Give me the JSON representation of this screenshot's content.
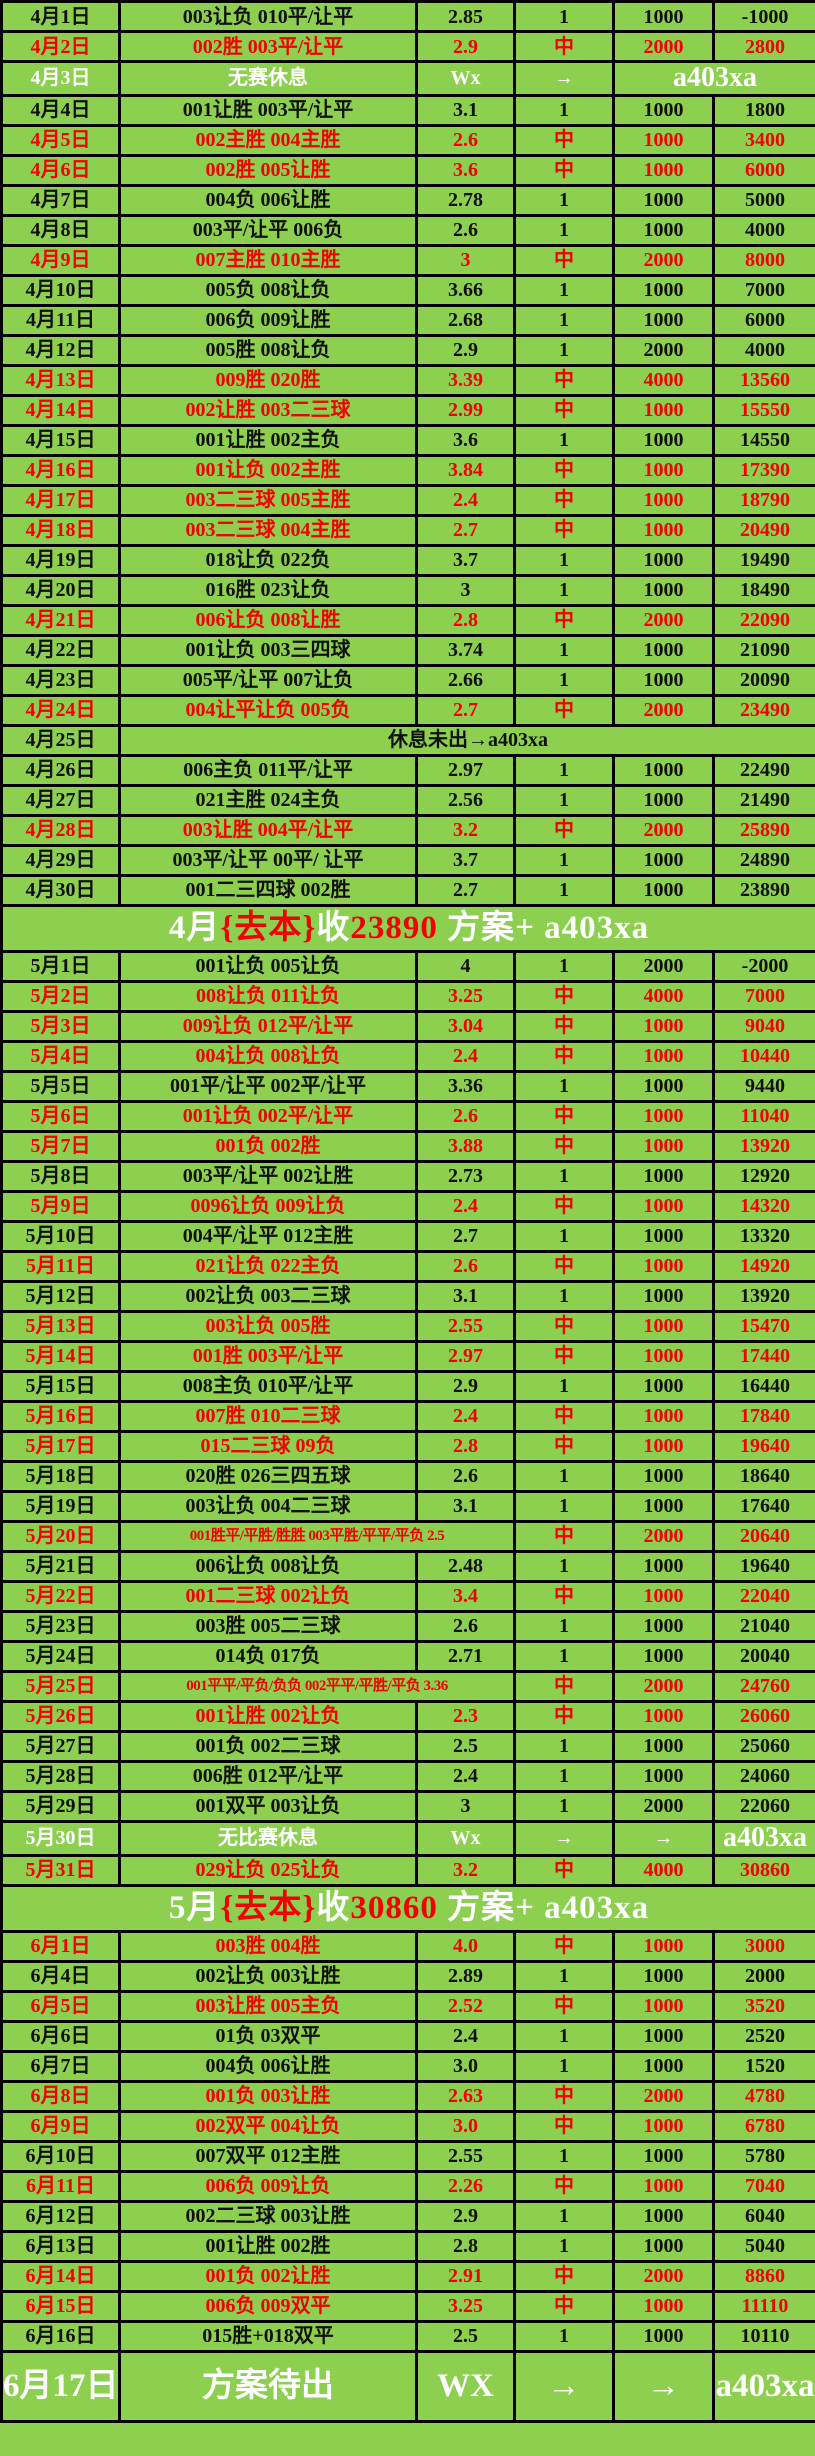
{
  "table": {
    "name": "betting-record-table",
    "columns": [
      "date",
      "picks",
      "odds",
      "result",
      "stake",
      "total"
    ],
    "colors": {
      "background_green": "#8dd04f",
      "grid_black": "#000000",
      "win_red": "#f40000",
      "lose_black": "#101010",
      "rest_white": "#ffffff"
    },
    "rows": [
      {
        "color": "black",
        "cells": [
          "4月1日",
          "003让负 010平/让平",
          "2.85",
          "1",
          "1000",
          "-1000"
        ]
      },
      {
        "color": "red",
        "cells": [
          "4月2日",
          "002胜 003平/让平",
          "2.9",
          "中",
          "2000",
          "2800"
        ]
      },
      {
        "color": "white",
        "cells": [
          "4月3日",
          "无赛休息",
          "Wx",
          "→",
          {
            "t": "a403xa",
            "span": 2,
            "cls": "big"
          }
        ]
      },
      {
        "color": "black",
        "cells": [
          "4月4日",
          "001让胜 003平/让平",
          "3.1",
          "1",
          "1000",
          "1800"
        ]
      },
      {
        "color": "red",
        "cells": [
          "4月5日",
          "002主胜 004主胜",
          "2.6",
          "中",
          "1000",
          "3400"
        ]
      },
      {
        "color": "red",
        "cells": [
          "4月6日",
          "002胜 005让胜",
          "3.6",
          "中",
          "1000",
          "6000"
        ]
      },
      {
        "color": "black",
        "cells": [
          "4月7日",
          "004负 006让胜",
          "2.78",
          "1",
          "1000",
          "5000"
        ]
      },
      {
        "color": "black",
        "cells": [
          "4月8日",
          "003平/让平 006负",
          "2.6",
          "1",
          "1000",
          "4000"
        ]
      },
      {
        "color": "red",
        "cells": [
          "4月9日",
          "007主胜 010主胜",
          "3",
          "中",
          "2000",
          "8000"
        ]
      },
      {
        "color": "black",
        "cells": [
          "4月10日",
          "005负 008让负",
          "3.66",
          "1",
          "1000",
          "7000"
        ]
      },
      {
        "color": "black",
        "cells": [
          "4月11日",
          "006负 009让胜",
          "2.68",
          "1",
          "1000",
          "6000"
        ]
      },
      {
        "color": "black",
        "cells": [
          "4月12日",
          "005胜 008让负",
          "2.9",
          "1",
          "2000",
          "4000"
        ]
      },
      {
        "color": "red",
        "cells": [
          "4月13日",
          "009胜 020胜",
          "3.39",
          "中",
          "4000",
          "13560"
        ]
      },
      {
        "color": "red",
        "cells": [
          "4月14日",
          "002让胜 003二三球",
          "2.99",
          "中",
          "1000",
          "15550"
        ]
      },
      {
        "color": "black",
        "cells": [
          "4月15日",
          "001让胜 002主负",
          "3.6",
          "1",
          "1000",
          "14550"
        ]
      },
      {
        "color": "red",
        "cells": [
          "4月16日",
          "001让负 002主胜",
          "3.84",
          "中",
          "1000",
          "17390"
        ]
      },
      {
        "color": "red",
        "cells": [
          "4月17日",
          "003二三球 005主胜",
          "2.4",
          "中",
          "1000",
          "18790"
        ]
      },
      {
        "color": "red",
        "cells": [
          "4月18日",
          "003二三球 004主胜",
          "2.7",
          "中",
          "1000",
          "20490"
        ]
      },
      {
        "color": "black",
        "cells": [
          "4月19日",
          "018让负 022负",
          "3.7",
          "1",
          "1000",
          "19490"
        ]
      },
      {
        "color": "black",
        "cells": [
          "4月20日",
          "016胜 023让负",
          "3",
          "1",
          "1000",
          "18490"
        ]
      },
      {
        "color": "red",
        "cells": [
          "4月21日",
          "006让负 008让胜",
          "2.8",
          "中",
          "2000",
          "22090"
        ]
      },
      {
        "color": "black",
        "cells": [
          "4月22日",
          "001让负 003三四球",
          "3.74",
          "1",
          "1000",
          "21090"
        ]
      },
      {
        "color": "black",
        "cells": [
          "4月23日",
          "005平/让平 007让负",
          "2.66",
          "1",
          "1000",
          "20090"
        ]
      },
      {
        "color": "red",
        "cells": [
          "4月24日",
          "004让平让负 005负",
          "2.7",
          "中",
          "2000",
          "23490"
        ]
      },
      {
        "color": "black",
        "cells": [
          "4月25日",
          {
            "t": "休息未出→a403xa",
            "span": 5
          }
        ]
      },
      {
        "color": "black",
        "cells": [
          "4月26日",
          "006主负 011平/让平",
          "2.97",
          "1",
          "1000",
          "22490"
        ]
      },
      {
        "color": "black",
        "cells": [
          "4月27日",
          "021主胜 024主负",
          "2.56",
          "1",
          "1000",
          "21490"
        ]
      },
      {
        "color": "red",
        "cells": [
          "4月28日",
          "003让胜 004平/让平",
          "3.2",
          "中",
          "2000",
          "25890"
        ]
      },
      {
        "color": "black",
        "cells": [
          "4月29日",
          "003平/让平 00平/ 让平",
          "3.7",
          "1",
          "1000",
          "24890"
        ]
      },
      {
        "color": "black",
        "cells": [
          "4月30日",
          "001二三四球 002胜",
          "2.7",
          "1",
          "1000",
          "23890"
        ]
      },
      {
        "h": "summary",
        "segs": [
          {
            "t": "4月",
            "c": "w"
          },
          {
            "t": "{去本}",
            "c": "r"
          },
          {
            "t": "收",
            "c": "w"
          },
          {
            "t": "23890",
            "c": "r"
          },
          {
            "t": " 方案+ a403xa",
            "c": "w"
          }
        ]
      },
      {
        "color": "black",
        "cells": [
          "5月1日",
          "001让负 005让负",
          "4",
          "1",
          "2000",
          "-2000"
        ]
      },
      {
        "color": "red",
        "cells": [
          "5月2日",
          "008让负 011让负",
          "3.25",
          "中",
          "4000",
          "7000"
        ]
      },
      {
        "color": "red",
        "cells": [
          "5月3日",
          "009让负 012平/让平",
          "3.04",
          "中",
          "1000",
          "9040"
        ]
      },
      {
        "color": "red",
        "cells": [
          "5月4日",
          "004让负 008让负",
          "2.4",
          "中",
          "1000",
          "10440"
        ]
      },
      {
        "color": "black",
        "cells": [
          "5月5日",
          "001平/让平 002平/让平",
          "3.36",
          "1",
          "1000",
          "9440"
        ]
      },
      {
        "color": "red",
        "cells": [
          "5月6日",
          "001让负 002平/让平",
          "2.6",
          "中",
          "1000",
          "11040"
        ]
      },
      {
        "color": "red",
        "cells": [
          "5月7日",
          "001负 002胜",
          "3.88",
          "中",
          "1000",
          "13920"
        ]
      },
      {
        "color": "black",
        "cells": [
          "5月8日",
          "003平/让平 002让胜",
          "2.73",
          "1",
          "1000",
          "12920"
        ]
      },
      {
        "color": "red",
        "cells": [
          "5月9日",
          "0096让负 009让负",
          "2.4",
          "中",
          "1000",
          "14320"
        ]
      },
      {
        "color": "black",
        "cells": [
          "5月10日",
          "004平/让平 012主胜",
          "2.7",
          "1",
          "1000",
          "13320"
        ]
      },
      {
        "color": "red",
        "cells": [
          "5月11日",
          "021让负 022主负",
          "2.6",
          "中",
          "1000",
          "14920"
        ]
      },
      {
        "color": "black",
        "cells": [
          "5月12日",
          "002让负 003二三球",
          "3.1",
          "1",
          "1000",
          "13920"
        ]
      },
      {
        "color": "red",
        "cells": [
          "5月13日",
          "003让负 005胜",
          "2.55",
          "中",
          "1000",
          "15470"
        ]
      },
      {
        "color": "red",
        "cells": [
          "5月14日",
          "001胜 003平/让平",
          "2.97",
          "中",
          "1000",
          "17440"
        ]
      },
      {
        "color": "black",
        "cells": [
          "5月15日",
          "008主负 010平/让平",
          "2.9",
          "1",
          "1000",
          "16440"
        ]
      },
      {
        "color": "red",
        "cells": [
          "5月16日",
          "007胜  010二三球",
          "2.4",
          "中",
          "1000",
          "17840"
        ]
      },
      {
        "color": "red",
        "cells": [
          "5月17日",
          "015二三球 09负",
          "2.8",
          "中",
          "1000",
          "19640"
        ]
      },
      {
        "color": "black",
        "cells": [
          "5月18日",
          "020胜 026三四五球",
          "2.6",
          "1",
          "1000",
          "18640"
        ]
      },
      {
        "color": "black",
        "cells": [
          "5月19日",
          "003让负 004二三球",
          "3.1",
          "1",
          "1000",
          "17640"
        ]
      },
      {
        "color": "red",
        "cells": [
          "5月20日",
          {
            "t": "001胜平/平胜/胜胜 003平胜/平平/平负 2.5",
            "span": 2,
            "cls": "small"
          },
          "中",
          "2000",
          "20640"
        ]
      },
      {
        "color": "black",
        "cells": [
          "5月21日",
          "006让负 008让负",
          "2.48",
          "1",
          "1000",
          "19640"
        ]
      },
      {
        "color": "red",
        "cells": [
          "5月22日",
          "001二三球 002让负",
          "3.4",
          "中",
          "1000",
          "22040"
        ]
      },
      {
        "color": "black",
        "cells": [
          "5月23日",
          "003胜 005二三球",
          "2.6",
          "1",
          "1000",
          "21040"
        ]
      },
      {
        "color": "black",
        "cells": [
          "5月24日",
          "014负 017负",
          "2.71",
          "1",
          "1000",
          "20040"
        ]
      },
      {
        "color": "red",
        "cells": [
          "5月25日",
          {
            "t": "001平平/平负/负负 002平平/平胜/平负 3.36",
            "span": 2,
            "cls": "small"
          },
          "中",
          "2000",
          "24760"
        ]
      },
      {
        "color": "red",
        "cells": [
          "5月26日",
          "001让胜 002让负",
          "2.3",
          "中",
          "1000",
          "26060"
        ]
      },
      {
        "color": "black",
        "cells": [
          "5月27日",
          "001负 002二三球",
          "2.5",
          "1",
          "1000",
          "25060"
        ]
      },
      {
        "color": "black",
        "cells": [
          "5月28日",
          "006胜 012平/让平",
          "2.4",
          "1",
          "1000",
          "24060"
        ]
      },
      {
        "color": "black",
        "cells": [
          "5月29日",
          "001双平 003让负",
          "3",
          "1",
          "2000",
          "22060"
        ]
      },
      {
        "color": "white",
        "cells": [
          "5月30日",
          "无比赛休息",
          "Wx",
          "→",
          "→",
          {
            "t": "a403xa",
            "cls": "big"
          }
        ]
      },
      {
        "color": "red",
        "cells": [
          "5月31日",
          "029让负 025让负",
          "3.2",
          "中",
          "4000",
          "30860"
        ]
      },
      {
        "h": "summary",
        "segs": [
          {
            "t": "5月",
            "c": "w"
          },
          {
            "t": "{去本}",
            "c": "r"
          },
          {
            "t": "收",
            "c": "w"
          },
          {
            "t": "30860",
            "c": "r"
          },
          {
            "t": " 方案+ a403xa",
            "c": "w"
          }
        ]
      },
      {
        "color": "red",
        "cells": [
          "6月1日",
          "003胜 004胜",
          "4.0",
          "中",
          "1000",
          "3000"
        ]
      },
      {
        "color": "black",
        "cells": [
          "6月4日",
          "002让负 003让胜",
          "2.89",
          "1",
          "1000",
          "2000"
        ]
      },
      {
        "color": "red",
        "cells": [
          "6月5日",
          "003让胜  005主负",
          "2.52",
          "中",
          "1000",
          "3520"
        ]
      },
      {
        "color": "black",
        "cells": [
          "6月6日",
          "01负 03双平",
          "2.4",
          "1",
          "1000",
          "2520"
        ]
      },
      {
        "color": "black",
        "cells": [
          "6月7日",
          "004负 006让胜",
          "3.0",
          "1",
          "1000",
          "1520"
        ]
      },
      {
        "color": "red",
        "cells": [
          "6月8日",
          "001负 003让胜",
          "2.63",
          "中",
          "2000",
          "4780"
        ]
      },
      {
        "color": "red",
        "cells": [
          "6月9日",
          "002双平 004让负",
          "3.0",
          "中",
          "1000",
          "6780"
        ]
      },
      {
        "color": "black",
        "cells": [
          "6月10日",
          "007双平 012主胜",
          "2.55",
          "1",
          "1000",
          "5780"
        ]
      },
      {
        "color": "red",
        "cells": [
          "6月11日",
          "006负 009让负",
          "2.26",
          "中",
          "1000",
          "7040"
        ]
      },
      {
        "color": "black",
        "cells": [
          "6月12日",
          "002二三球 003让胜",
          "2.9",
          "1",
          "1000",
          "6040"
        ]
      },
      {
        "color": "black",
        "cells": [
          "6月13日",
          "001让胜 002胜",
          "2.8",
          "1",
          "1000",
          "5040"
        ]
      },
      {
        "color": "red",
        "cells": [
          "6月14日",
          "001负 002让胜",
          "2.91",
          "中",
          "2000",
          "8860"
        ]
      },
      {
        "color": "red",
        "cells": [
          "6月15日",
          "006负 009双平",
          "3.25",
          "中",
          "1000",
          "11110"
        ]
      },
      {
        "color": "black",
        "cells": [
          "6月16日",
          "015胜+018双平",
          "2.5",
          "1",
          "1000",
          "10110"
        ]
      },
      {
        "color": "white",
        "h": "final",
        "cells": [
          "6月17日",
          "方案待出",
          "WX",
          "→",
          "→",
          "a403xa"
        ]
      }
    ]
  }
}
